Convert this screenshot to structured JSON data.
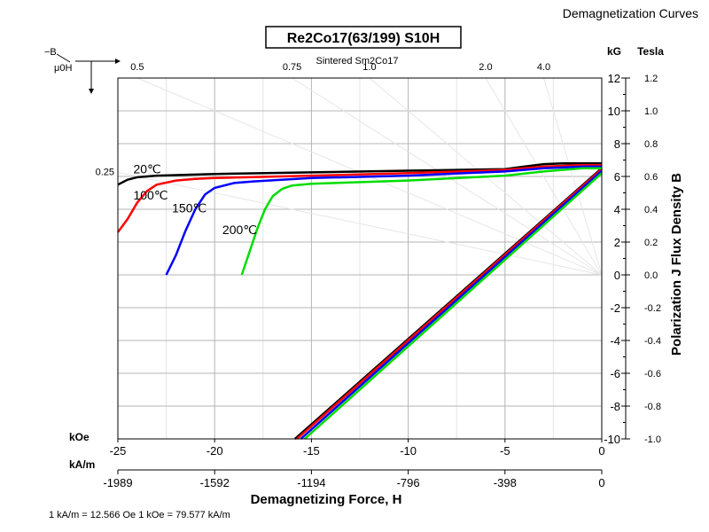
{
  "header": "Demagnetization Curves",
  "chart_data": {
    "type": "line",
    "title": "Re2Co17(63/199) S10H",
    "subtitle": "Sintered Sm2Co17",
    "xlabel": "Demagnetizing Force, H",
    "ylabel": "Polarization J Flux Density B",
    "x_unit_koe": "kOe",
    "x_unit_kam": "kA/m",
    "y_unit_kg": "kG",
    "y_unit_tesla": "Tesla",
    "left_axis_label_top": "−B",
    "left_axis_label_bottom": "μ0H",
    "footnote": "1 kA/m = 12.566 Oe 1 kOe = 79.577 kA/m",
    "xlim": [
      -25,
      0
    ],
    "ylim": [
      -10,
      12
    ],
    "x_ticks_koe": [
      -25,
      -20,
      -15,
      -10,
      -5,
      0
    ],
    "x_tick_labels_koe": [
      "-25",
      "-20",
      "-15",
      "-10",
      "-5",
      "0"
    ],
    "x_tick_labels_kam": [
      "-1989",
      "-1592",
      "-1194",
      "-796",
      "-398",
      "0"
    ],
    "y_ticks_kg": [
      -10,
      -8,
      -6,
      -4,
      -2,
      0,
      2,
      4,
      6,
      8,
      10,
      12
    ],
    "y_tick_labels_kg": [
      "-10",
      "-8",
      "-6",
      "-4",
      "-2",
      "0",
      "2",
      "4",
      "6",
      "8",
      "10",
      "12"
    ],
    "y_tick_labels_tesla": [
      "-1.0",
      "-0.8",
      "-0.6",
      "-0.4",
      "-0.2",
      "0.0",
      "0.2",
      "0.4",
      "0.6",
      "0.8",
      "1.0",
      "1.2"
    ],
    "grid": true,
    "permeance_lines": [
      {
        "label": "0.25",
        "ratio": 0.25
      },
      {
        "label": "0.5",
        "ratio": 0.5
      },
      {
        "label": "0.75",
        "ratio": 0.75
      },
      {
        "label": "1.0",
        "ratio": 1.0
      },
      {
        "label": "2.0",
        "ratio": 2.0
      },
      {
        "label": "4.0",
        "ratio": 4.0
      }
    ],
    "series": [
      {
        "name": "20℃",
        "color": "#000000",
        "j_curve": {
          "x": [
            -25,
            -24.5,
            -24,
            -23,
            -20,
            -15,
            -10,
            -5,
            -4,
            -3,
            -2,
            -1,
            0
          ],
          "y": [
            5.5,
            5.8,
            5.95,
            6.05,
            6.15,
            6.25,
            6.35,
            6.45,
            6.6,
            6.75,
            6.8,
            6.8,
            6.8
          ]
        },
        "b_line": {
          "x": [
            -15.85,
            0
          ],
          "y": [
            -10,
            6.5
          ]
        }
      },
      {
        "name": "100℃",
        "color": "#ff0000",
        "j_curve": {
          "x": [
            -25,
            -24.5,
            -24,
            -23.5,
            -23,
            -22,
            -21,
            -20,
            -15,
            -10,
            -5,
            -3,
            -1,
            0
          ],
          "y": [
            2.6,
            3.4,
            4.4,
            5.1,
            5.5,
            5.75,
            5.85,
            5.9,
            6.05,
            6.2,
            6.4,
            6.6,
            6.7,
            6.7
          ]
        },
        "b_line": {
          "x": [
            -15.75,
            0
          ],
          "y": [
            -10,
            6.45
          ]
        }
      },
      {
        "name": "150℃",
        "color": "#0000ff",
        "j_curve": {
          "x": [
            -22.5,
            -22,
            -21.5,
            -21,
            -20.5,
            -20,
            -19,
            -18,
            -15,
            -10,
            -5,
            -3,
            -1,
            0
          ],
          "y": [
            0,
            1.2,
            2.7,
            4.0,
            4.9,
            5.3,
            5.6,
            5.7,
            5.9,
            6.05,
            6.3,
            6.5,
            6.6,
            6.6
          ]
        },
        "b_line": {
          "x": [
            -15.55,
            0
          ],
          "y": [
            -10,
            6.35
          ]
        }
      },
      {
        "name": "200℃",
        "color": "#00dd00",
        "j_curve": {
          "x": [
            -18.6,
            -18.2,
            -17.8,
            -17.4,
            -17,
            -16.5,
            -16,
            -15,
            -10,
            -5,
            -3,
            -1,
            0
          ],
          "y": [
            0,
            1.4,
            2.8,
            4.0,
            4.8,
            5.25,
            5.45,
            5.55,
            5.75,
            6.05,
            6.3,
            6.5,
            6.5
          ]
        },
        "b_line": {
          "x": [
            -15.35,
            0
          ],
          "y": [
            -10,
            6.2
          ]
        }
      }
    ],
    "series_labels": [
      {
        "text": "20℃",
        "x": -24.2,
        "y": 6.2,
        "series": 0
      },
      {
        "text": "100℃",
        "x": -24.2,
        "y": 4.6,
        "series": 1
      },
      {
        "text": "150℃",
        "x": -22.2,
        "y": 3.8,
        "series": 2
      },
      {
        "text": "200℃",
        "x": -19.6,
        "y": 2.5,
        "series": 3
      }
    ]
  }
}
